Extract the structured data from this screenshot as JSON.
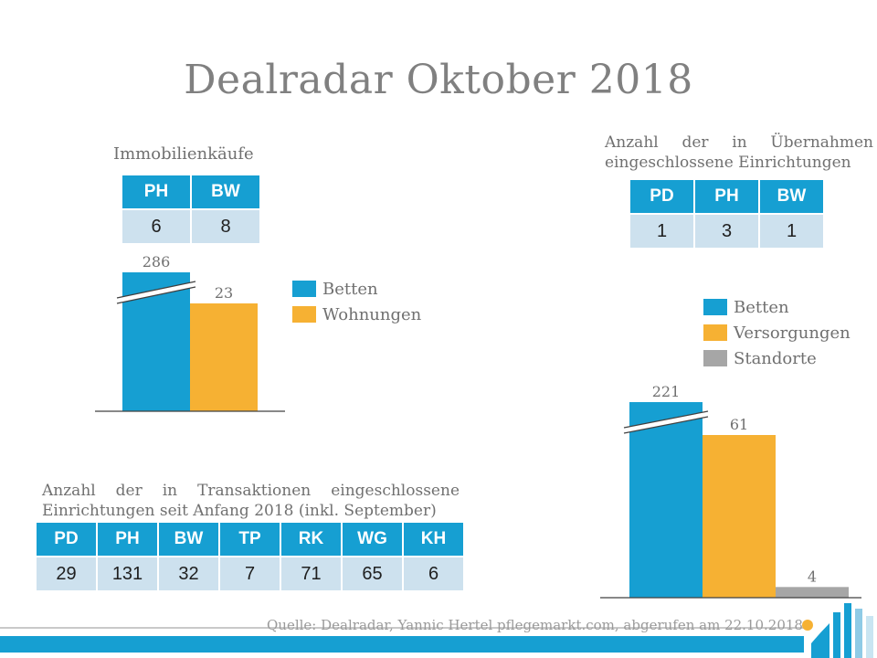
{
  "title": "Dealradar Oktober 2018",
  "colors": {
    "blue": "#169fd2",
    "orange": "#f6b133",
    "gray": "#a6a6a6",
    "header": "#169fd2",
    "cell": "#cde1ee"
  },
  "immobilien": {
    "label": "Immobilienkäufe",
    "headers": [
      "PH",
      "BW"
    ],
    "values": [
      "6",
      "8"
    ]
  },
  "uebernahmen": {
    "label_line1": "Anzahl der in Übernahmen",
    "label_line2": "eingeschlossene Einrichtungen",
    "headers": [
      "PD",
      "PH",
      "BW"
    ],
    "values": [
      "1",
      "3",
      "1"
    ]
  },
  "transaktionen": {
    "label_line1": "Anzahl der in Transaktionen eingeschlossene",
    "label_line2": "Einrichtungen seit Anfang 2018 (inkl. September)",
    "headers": [
      "PD",
      "PH",
      "BW",
      "TP",
      "RK",
      "WG",
      "KH"
    ],
    "values": [
      "29",
      "131",
      "32",
      "7",
      "71",
      "65",
      "6"
    ]
  },
  "chart_data": [
    {
      "type": "bar",
      "axis_break": true,
      "categories": [
        "Betten",
        "Wohnungen"
      ],
      "values": [
        286,
        23
      ],
      "legend": [
        "Betten",
        "Wohnungen"
      ],
      "legend_position": "right",
      "colors": [
        "#169fd2",
        "#f6b133"
      ],
      "grid": false
    },
    {
      "type": "bar",
      "axis_break": true,
      "categories": [
        "Betten",
        "Versorgungen",
        "Standorte"
      ],
      "values": [
        221,
        61,
        4
      ],
      "legend": [
        "Betten",
        "Versorgungen",
        "Standorte"
      ],
      "legend_position": "top",
      "colors": [
        "#169fd2",
        "#f6b133",
        "#a6a6a6"
      ],
      "grid": false
    }
  ],
  "source": "Quelle: Dealradar, Yannic Hertel pflegemarkt.com, abgerufen am 22.10.2018"
}
